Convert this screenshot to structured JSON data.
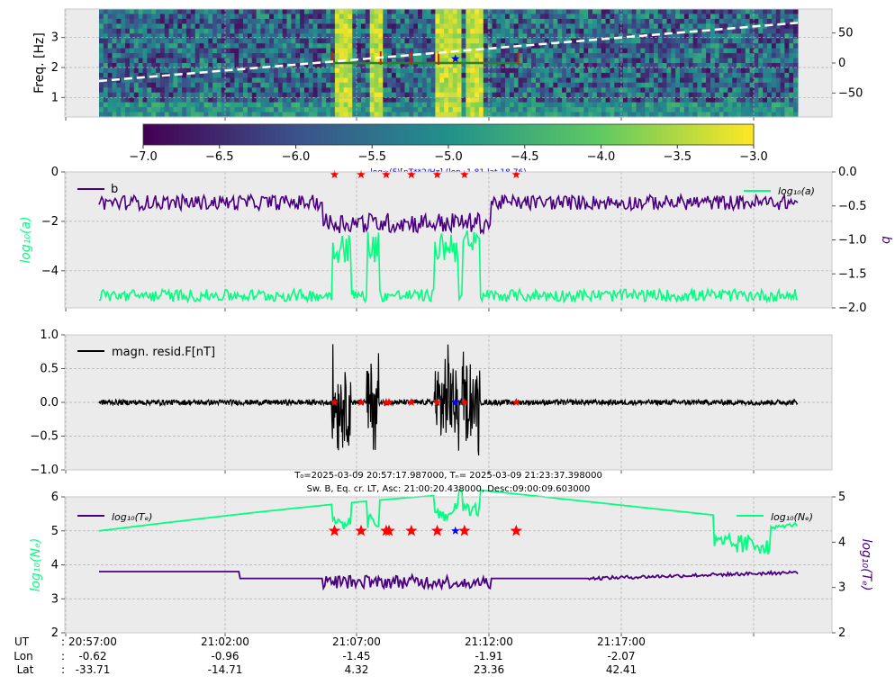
{
  "colors": {
    "panel_bg": "#ebebeb",
    "grid": "#b0b0b0",
    "b_line": "#4b0082",
    "a_line": "#00ff7f",
    "resid_line": "#000000",
    "star_red": "#ff0000",
    "star_blue": "#0000ff",
    "dashed_white": "#ffffff",
    "seg_green": "#2e7d32",
    "seg_red": "#cc2200"
  },
  "chart_data": [
    {
      "id": "spectrogram",
      "type": "heatmap",
      "ylabel": "Freq. [Hz]",
      "ylim": [
        0.35,
        3.95
      ],
      "yticks": [
        "1",
        "2",
        "3"
      ],
      "y2lim": [
        -90,
        90
      ],
      "y2ticks": [
        "50",
        "0",
        "−50"
      ],
      "grid": true,
      "colormap": "viridis",
      "overlay_dashed_line": {
        "x": [
          0.0,
          1.0
        ],
        "y2": [
          -30,
          67
        ]
      },
      "high_power_bands": [
        [
          0.333,
          0.36
        ],
        [
          0.383,
          0.4
        ],
        [
          0.48,
          0.515
        ],
        [
          0.52,
          0.545
        ]
      ],
      "stars_red": [
        0.39,
        0.403,
        0.425,
        0.46,
        0.5
      ],
      "stars_blue": [
        0.51
      ]
    },
    {
      "id": "colorbar",
      "type": "colorbar",
      "range": [
        -7.0,
        -3.0
      ],
      "ticks": [
        "−7.0",
        "−6.5",
        "−6.0",
        "−5.5",
        "−5.0",
        "−4.5",
        "−4.0",
        "−3.5",
        "−3.0"
      ],
      "label": "log₁₀(F)[nT**2/Hz] (lon -1.81 lat 18.76)"
    },
    {
      "id": "fit-params",
      "type": "line",
      "ylabel": "log₁₀(a)",
      "y2label": "b",
      "ylim": [
        0,
        -5.5
      ],
      "yticks": [
        "0",
        "−2",
        "−4"
      ],
      "y2lim": [
        -2.0,
        0.0
      ],
      "y2ticks": [
        "0.0",
        "−0.5",
        "−1.0",
        "−1.5",
        "−2.0"
      ],
      "grid": true,
      "series": [
        {
          "name": "b",
          "legend": "b",
          "axis": "right",
          "base": -0.45,
          "event_level": -0.75
        },
        {
          "name": "log₁₀(a)",
          "legend": "log₁₀(a)",
          "axis": "left",
          "base": -5.0,
          "event_level": -3.0
        }
      ],
      "stars_red": [
        0.337,
        0.375,
        0.411,
        0.447,
        0.484,
        0.523,
        0.597
      ],
      "stars_blue": [
        0.51
      ]
    },
    {
      "id": "residual",
      "type": "line",
      "ylim": [
        -1.0,
        1.0
      ],
      "yticks": [
        "1.0",
        "0.5",
        "0.0",
        "−0.5",
        "−1.0"
      ],
      "grid": true,
      "series": [
        {
          "name": "magn. resid.F[nT]",
          "legend": "magn. resid.F[nT]",
          "noise_amp": 0.04,
          "event_amp": 0.9
        }
      ],
      "event_bands": [
        [
          0.333,
          0.36
        ],
        [
          0.383,
          0.4
        ],
        [
          0.48,
          0.515
        ],
        [
          0.52,
          0.545
        ]
      ],
      "stars_red": [
        0.337,
        0.375,
        0.411,
        0.415,
        0.447,
        0.484,
        0.523,
        0.597
      ],
      "stars_blue": [
        0.51
      ]
    },
    {
      "id": "plasma",
      "type": "line",
      "ylabel": "log₁₀(Nₑ)",
      "y2label": "log₁₀(Tₑ)",
      "ylim": [
        2,
        6
      ],
      "yticks": [
        "6",
        "5",
        "4",
        "3",
        "2"
      ],
      "y2lim": [
        2,
        5
      ],
      "y2ticks": [
        "5",
        "4",
        "3",
        "2"
      ],
      "grid": true,
      "series": [
        {
          "name": "log₁₀(Tₑ)",
          "legend": "log₁₀(Tₑ)",
          "axis": "left",
          "base": 3.8
        },
        {
          "name": "log₁₀(Nₑ)",
          "legend": "log₁₀(Nₑ)",
          "axis": "left",
          "start": 5.0,
          "peak": 6.3,
          "end": 5.2
        }
      ],
      "stars_red": [
        0.337,
        0.375,
        0.411,
        0.415,
        0.447,
        0.484,
        0.523,
        0.597
      ],
      "stars_blue": [
        0.51
      ]
    }
  ],
  "title_line1": "T₀=2025-03-09 20:57:17.987000, Tₙ= 2025-03-09 21:23:37.398000",
  "title_line2": "Sw. B, Eq. cr. LT, Asc: 21:00:20.438000, Desc:09:00:09.603000",
  "xaxis": {
    "row_labels": [
      "UT",
      "Lon",
      "Lat"
    ],
    "separators": [
      ":",
      ":",
      ":"
    ],
    "ticks": [
      {
        "ut": "20:57:00",
        "lon": "-0.62",
        "lat": "-33.71"
      },
      {
        "ut": "21:02:00",
        "lon": "-0.96",
        "lat": "-14.71"
      },
      {
        "ut": "21:07:00",
        "lon": "-1.45",
        "lat": "4.32"
      },
      {
        "ut": "21:12:00",
        "lon": "-1.91",
        "lat": "23.36"
      },
      {
        "ut": "21:17:00",
        "lon": "-2.07",
        "lat": "42.41"
      }
    ]
  }
}
